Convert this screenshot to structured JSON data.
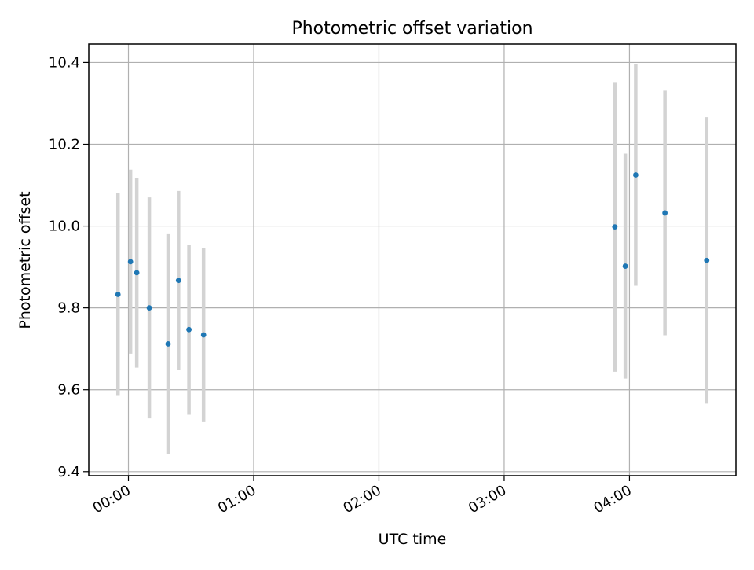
{
  "chart_data": {
    "type": "scatter",
    "title": "Photometric offset variation",
    "xlabel": "UTC time",
    "ylabel": "Photometric offset",
    "x_ticks": [
      "00:00",
      "01:00",
      "02:00",
      "03:00",
      "04:00"
    ],
    "x_tick_minutes": [
      0,
      60,
      120,
      180,
      240
    ],
    "y_ticks": [
      "9.4",
      "9.6",
      "9.8",
      "10.0",
      "10.2",
      "10.4"
    ],
    "y_tick_values": [
      9.4,
      9.6,
      9.8,
      10.0,
      10.2,
      10.4
    ],
    "xlim": [
      "-00:19",
      "04:51"
    ],
    "ylim": [
      9.39,
      10.445
    ],
    "grid": true,
    "series": [
      {
        "marker_color": "#1f77b4",
        "errorbar_color": "#d3d3d3",
        "points": [
          {
            "time": "23:55",
            "y": 9.833,
            "yerr": 0.248
          },
          {
            "time": "00:01",
            "y": 9.913,
            "yerr": 0.225
          },
          {
            "time": "00:04",
            "y": 9.886,
            "yerr": 0.232
          },
          {
            "time": "00:10",
            "y": 9.8,
            "yerr": 0.27
          },
          {
            "time": "00:19",
            "y": 9.712,
            "yerr": 0.27
          },
          {
            "time": "00:24",
            "y": 9.867,
            "yerr": 0.219
          },
          {
            "time": "00:29",
            "y": 9.747,
            "yerr": 0.208
          },
          {
            "time": "00:36",
            "y": 9.734,
            "yerr": 0.213
          },
          {
            "time": "03:53",
            "y": 9.998,
            "yerr": 0.354
          },
          {
            "time": "03:58",
            "y": 9.902,
            "yerr": 0.275
          },
          {
            "time": "04:03",
            "y": 10.125,
            "yerr": 0.271
          },
          {
            "time": "04:17",
            "y": 10.032,
            "yerr": 0.299
          },
          {
            "time": "04:37",
            "y": 9.916,
            "yerr": 0.35
          }
        ]
      }
    ]
  }
}
